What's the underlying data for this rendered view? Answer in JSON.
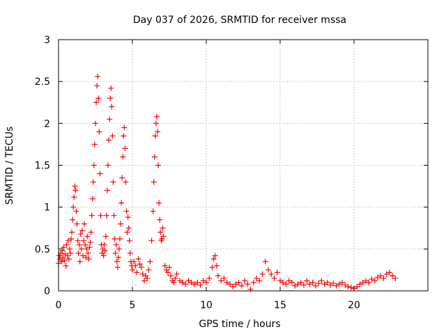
{
  "chart_data": {
    "type": "scatter",
    "title": "Day 037 of 2026, SRMTID for receiver mssa",
    "xlabel": "GPS time / hours",
    "ylabel": "SRMTID / TECUs",
    "xlim": [
      0,
      25
    ],
    "ylim": [
      0,
      3
    ],
    "xticks": [
      0,
      5,
      10,
      15,
      20
    ],
    "yticks": [
      0,
      0.5,
      1,
      1.5,
      2,
      2.5,
      3
    ],
    "xtick_labels": [
      "0",
      "5",
      "10",
      "15",
      "20"
    ],
    "ytick_labels": [
      "0",
      "0.5",
      "1",
      "1.5",
      "2",
      "2.5",
      "3"
    ],
    "grid": true,
    "marker": "plus",
    "color": "#ff0000",
    "series": [
      {
        "name": "SRMTID",
        "points": [
          [
            0.0,
            0.33
          ],
          [
            0.05,
            0.42
          ],
          [
            0.1,
            0.38
          ],
          [
            0.15,
            0.45
          ],
          [
            0.2,
            0.35
          ],
          [
            0.25,
            0.48
          ],
          [
            0.3,
            0.4
          ],
          [
            0.35,
            0.52
          ],
          [
            0.4,
            0.36
          ],
          [
            0.45,
            0.44
          ],
          [
            0.5,
            0.3
          ],
          [
            0.55,
            0.55
          ],
          [
            0.6,
            0.42
          ],
          [
            0.65,
            0.6
          ],
          [
            0.7,
            0.38
          ],
          [
            0.75,
            0.5
          ],
          [
            0.8,
            0.45
          ],
          [
            0.85,
            0.62
          ],
          [
            0.9,
            0.7
          ],
          [
            0.95,
            0.85
          ],
          [
            1.0,
            1.0
          ],
          [
            1.05,
            1.12
          ],
          [
            1.1,
            1.25
          ],
          [
            1.15,
            1.2
          ],
          [
            1.2,
            0.95
          ],
          [
            1.25,
            0.8
          ],
          [
            1.3,
            0.6
          ],
          [
            1.35,
            0.45
          ],
          [
            1.4,
            0.55
          ],
          [
            1.45,
            0.35
          ],
          [
            1.5,
            0.68
          ],
          [
            1.55,
            0.5
          ],
          [
            1.6,
            0.72
          ],
          [
            1.65,
            0.42
          ],
          [
            1.7,
            0.6
          ],
          [
            1.75,
            0.8
          ],
          [
            1.8,
            0.55
          ],
          [
            1.85,
            0.4
          ],
          [
            1.9,
            0.5
          ],
          [
            1.95,
            0.65
          ],
          [
            2.0,
            0.45
          ],
          [
            2.05,
            0.38
          ],
          [
            2.1,
            0.52
          ],
          [
            2.15,
            0.58
          ],
          [
            2.2,
            0.7
          ],
          [
            2.25,
            0.9
          ],
          [
            2.3,
            1.1
          ],
          [
            2.35,
            1.3
          ],
          [
            2.4,
            1.5
          ],
          [
            2.45,
            1.75
          ],
          [
            2.5,
            2.0
          ],
          [
            2.55,
            2.25
          ],
          [
            2.6,
            2.45
          ],
          [
            2.65,
            2.56
          ],
          [
            2.7,
            2.3
          ],
          [
            2.75,
            1.9
          ],
          [
            2.8,
            1.4
          ],
          [
            2.85,
            0.9
          ],
          [
            2.9,
            0.55
          ],
          [
            2.95,
            0.45
          ],
          [
            3.0,
            0.5
          ],
          [
            3.05,
            0.42
          ],
          [
            3.1,
            0.55
          ],
          [
            3.15,
            0.48
          ],
          [
            3.2,
            0.65
          ],
          [
            3.25,
            0.9
          ],
          [
            3.3,
            1.2
          ],
          [
            3.35,
            1.5
          ],
          [
            3.4,
            1.8
          ],
          [
            3.45,
            2.05
          ],
          [
            3.5,
            2.3
          ],
          [
            3.55,
            2.42
          ],
          [
            3.6,
            2.2
          ],
          [
            3.65,
            1.85
          ],
          [
            3.7,
            1.3
          ],
          [
            3.75,
            0.9
          ],
          [
            3.8,
            0.62
          ],
          [
            3.85,
            0.45
          ],
          [
            3.9,
            0.55
          ],
          [
            3.95,
            0.35
          ],
          [
            4.0,
            0.28
          ],
          [
            4.05,
            0.4
          ],
          [
            4.1,
            0.5
          ],
          [
            4.15,
            0.62
          ],
          [
            4.2,
            0.8
          ],
          [
            4.25,
            1.05
          ],
          [
            4.3,
            1.35
          ],
          [
            4.35,
            1.6
          ],
          [
            4.4,
            1.85
          ],
          [
            4.45,
            1.95
          ],
          [
            4.5,
            1.7
          ],
          [
            4.55,
            1.3
          ],
          [
            4.6,
            0.95
          ],
          [
            4.65,
            0.7
          ],
          [
            4.7,
            0.88
          ],
          [
            4.75,
            0.75
          ],
          [
            4.8,
            0.6
          ],
          [
            4.85,
            0.45
          ],
          [
            4.9,
            0.35
          ],
          [
            4.95,
            0.3
          ],
          [
            5.0,
            0.25
          ],
          [
            5.1,
            0.35
          ],
          [
            5.2,
            0.3
          ],
          [
            5.3,
            0.22
          ],
          [
            5.4,
            0.38
          ],
          [
            5.5,
            0.32
          ],
          [
            5.6,
            0.28
          ],
          [
            5.7,
            0.2
          ],
          [
            5.8,
            0.12
          ],
          [
            5.9,
            0.18
          ],
          [
            6.0,
            0.15
          ],
          [
            6.1,
            0.25
          ],
          [
            6.2,
            0.35
          ],
          [
            6.3,
            0.6
          ],
          [
            6.4,
            0.95
          ],
          [
            6.45,
            1.3
          ],
          [
            6.5,
            1.6
          ],
          [
            6.55,
            1.85
          ],
          [
            6.6,
            2.0
          ],
          [
            6.65,
            2.08
          ],
          [
            6.7,
            1.9
          ],
          [
            6.75,
            1.5
          ],
          [
            6.8,
            1.05
          ],
          [
            6.85,
            0.85
          ],
          [
            6.9,
            0.7
          ],
          [
            6.95,
            0.6
          ],
          [
            7.0,
            0.62
          ],
          [
            7.05,
            0.75
          ],
          [
            7.1,
            0.65
          ],
          [
            7.2,
            0.3
          ],
          [
            7.3,
            0.25
          ],
          [
            7.4,
            0.22
          ],
          [
            7.5,
            0.28
          ],
          [
            7.6,
            0.18
          ],
          [
            7.7,
            0.12
          ],
          [
            7.8,
            0.1
          ],
          [
            7.9,
            0.15
          ],
          [
            8.0,
            0.2
          ],
          [
            8.2,
            0.12
          ],
          [
            8.4,
            0.1
          ],
          [
            8.6,
            0.08
          ],
          [
            8.8,
            0.12
          ],
          [
            9.0,
            0.1
          ],
          [
            9.2,
            0.08
          ],
          [
            9.4,
            0.1
          ],
          [
            9.6,
            0.07
          ],
          [
            9.8,
            0.12
          ],
          [
            10.0,
            0.1
          ],
          [
            10.2,
            0.15
          ],
          [
            10.4,
            0.28
          ],
          [
            10.5,
            0.38
          ],
          [
            10.6,
            0.42
          ],
          [
            10.7,
            0.3
          ],
          [
            10.8,
            0.18
          ],
          [
            11.0,
            0.12
          ],
          [
            11.2,
            0.15
          ],
          [
            11.4,
            0.1
          ],
          [
            11.6,
            0.08
          ],
          [
            11.8,
            0.05
          ],
          [
            12.0,
            0.08
          ],
          [
            12.2,
            0.1
          ],
          [
            12.4,
            0.06
          ],
          [
            12.6,
            0.12
          ],
          [
            12.8,
            0.08
          ],
          [
            13.0,
            0.02
          ],
          [
            13.2,
            0.1
          ],
          [
            13.4,
            0.15
          ],
          [
            13.6,
            0.12
          ],
          [
            13.8,
            0.2
          ],
          [
            14.0,
            0.35
          ],
          [
            14.2,
            0.25
          ],
          [
            14.4,
            0.2
          ],
          [
            14.6,
            0.15
          ],
          [
            14.8,
            0.22
          ],
          [
            15.0,
            0.12
          ],
          [
            15.2,
            0.1
          ],
          [
            15.4,
            0.08
          ],
          [
            15.6,
            0.12
          ],
          [
            15.8,
            0.1
          ],
          [
            16.0,
            0.06
          ],
          [
            16.2,
            0.08
          ],
          [
            16.4,
            0.1
          ],
          [
            16.6,
            0.07
          ],
          [
            16.8,
            0.12
          ],
          [
            17.0,
            0.08
          ],
          [
            17.2,
            0.1
          ],
          [
            17.4,
            0.06
          ],
          [
            17.6,
            0.09
          ],
          [
            17.8,
            0.12
          ],
          [
            18.0,
            0.08
          ],
          [
            18.2,
            0.1
          ],
          [
            18.4,
            0.07
          ],
          [
            18.6,
            0.09
          ],
          [
            18.8,
            0.06
          ],
          [
            19.0,
            0.08
          ],
          [
            19.2,
            0.1
          ],
          [
            19.4,
            0.07
          ],
          [
            19.6,
            0.05
          ],
          [
            19.8,
            0.04
          ],
          [
            20.0,
            0.03
          ],
          [
            20.2,
            0.05
          ],
          [
            20.4,
            0.08
          ],
          [
            20.6,
            0.1
          ],
          [
            20.8,
            0.12
          ],
          [
            21.0,
            0.1
          ],
          [
            21.2,
            0.14
          ],
          [
            21.4,
            0.12
          ],
          [
            21.6,
            0.16
          ],
          [
            21.8,
            0.18
          ],
          [
            22.0,
            0.15
          ],
          [
            22.2,
            0.2
          ],
          [
            22.4,
            0.22
          ],
          [
            22.6,
            0.18
          ],
          [
            22.8,
            0.15
          ]
        ]
      }
    ]
  }
}
